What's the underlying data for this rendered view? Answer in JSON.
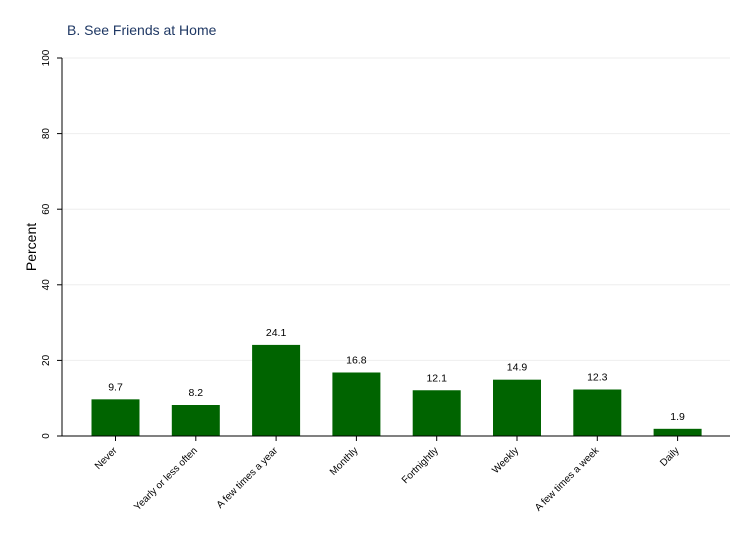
{
  "chart_data": {
    "type": "bar",
    "title": "B. See Friends at Home",
    "ylabel": "Percent",
    "xlabel": "",
    "ylim": [
      0,
      100
    ],
    "yticks": [
      0,
      20,
      40,
      60,
      80,
      100
    ],
    "grid": true,
    "bar_color": "#006400",
    "categories": [
      "Never",
      "Yearly or less often",
      "A few times a year",
      "Monthly",
      "Fortnightly",
      "Weekly",
      "A few times a week",
      "Daily"
    ],
    "values": [
      9.7,
      8.2,
      24.1,
      16.8,
      12.1,
      14.9,
      12.3,
      1.9
    ],
    "data_labels": [
      "9.7",
      "8.2",
      "24.1",
      "16.8",
      "12.1",
      "14.9",
      "12.3",
      "1.9"
    ]
  }
}
